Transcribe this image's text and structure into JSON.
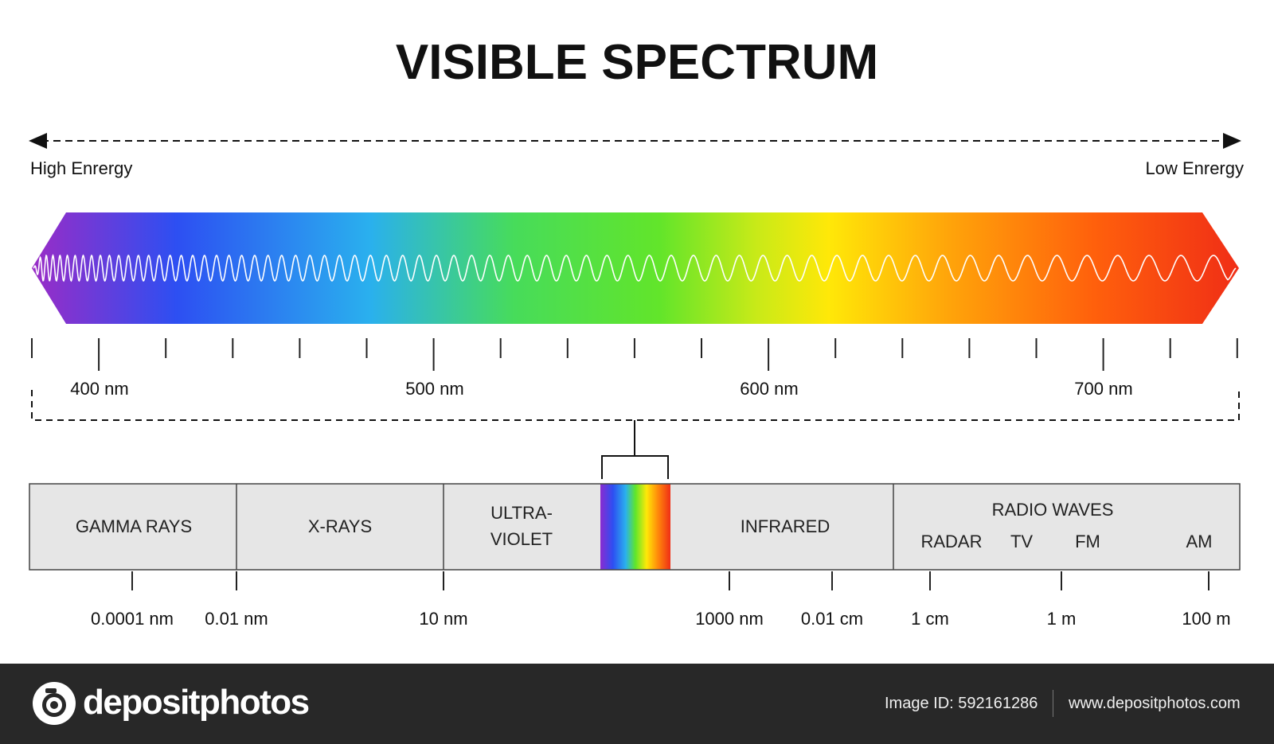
{
  "title": "VISIBLE SPECTRUM",
  "energy": {
    "high_label": "High Enrergy",
    "low_label": "Low Enrergy"
  },
  "visible_scale": {
    "labels": [
      "400 nm",
      "500 nm",
      "600 nm",
      "700 nm"
    ]
  },
  "bands": [
    {
      "label_lines": [
        "GAMMA RAYS"
      ]
    },
    {
      "label_lines": [
        "X-RAYS"
      ]
    },
    {
      "label_lines": [
        "ULTRA-",
        "VIOLET"
      ]
    },
    {
      "label_lines": []
    },
    {
      "label_lines": [
        "INFRARED"
      ]
    },
    {
      "label_lines": [
        "RADIO WAVES"
      ],
      "sub_labels": [
        "RADAR",
        "TV",
        "FM",
        "AM"
      ]
    }
  ],
  "wavelength_scale": {
    "labels": [
      "0.0001 nm",
      "0.01 nm",
      "10 nm",
      "1000 nm",
      "0.01 cm",
      "1 cm",
      "1 m",
      "100 m"
    ]
  },
  "footer": {
    "brand": "depositphotos",
    "image_id": "Image ID: 592161286",
    "url": "www.depositphotos.com"
  },
  "colors": {
    "spectrum": [
      "#8a2bd0",
      "#1f5cf5",
      "#2ba6f2",
      "#44d860",
      "#5fe62a",
      "#98e62a",
      "#ffe60a",
      "#ffa80a",
      "#ff6a0a",
      "#f43018"
    ],
    "band_fill": "#e6e6e6",
    "footer_bg": "#282828"
  }
}
